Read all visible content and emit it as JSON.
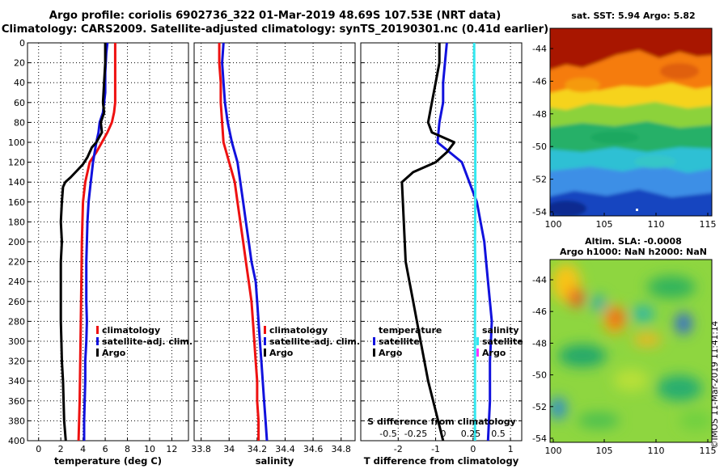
{
  "header": {
    "title_line1": "Argo profile: coriolis 6902736_322 01-Mar-2019 48.69S 107.53E (NRT data)",
    "title_line2": "Climatology: CARS2009. Satellite-adjusted climatology: synTS_20190301.nc (0.41d earlier)"
  },
  "sst_map": {
    "title": "sat. SST: 5.94 Argo: 5.82",
    "x_ticks": [
      "100",
      "105",
      "110",
      "115"
    ],
    "y_ticks": [
      "-44",
      "-46",
      "-48",
      "-50",
      "-52",
      "-54"
    ]
  },
  "sla_map": {
    "title_line1": "Altim. SLA: -0.0008",
    "title_line2": "Argo h1000: NaN h2000: NaN",
    "x_ticks": [
      "100",
      "105",
      "110",
      "115"
    ],
    "y_ticks": [
      "-44",
      "-46",
      "-48",
      "-50",
      "-52",
      "-54"
    ]
  },
  "stamp": "©IMOS 11-Mar-2019 11:41:14",
  "colors": {
    "climatology": "#ee1111",
    "satellite": "#1111dd",
    "argo": "#000000",
    "sat_salinity": "#33e8f0",
    "argo_salinity": "#ff33ff"
  },
  "chart_data": [
    {
      "type": "line",
      "title": "",
      "xlabel": "temperature (deg C)",
      "ylabel": "",
      "xlim": [
        -1,
        13.5
      ],
      "ylim": [
        400,
        0
      ],
      "grid": true,
      "x_tick_labels": [
        "0",
        "2",
        "4",
        "6",
        "8",
        "10",
        "12"
      ],
      "x_tick_values": [
        0,
        2,
        4,
        6,
        8,
        10,
        12
      ],
      "y_tick_labels": [
        "0",
        "20",
        "40",
        "60",
        "80",
        "100",
        "120",
        "140",
        "160",
        "180",
        "200",
        "220",
        "240",
        "260",
        "280",
        "300",
        "320",
        "340",
        "360",
        "380",
        "400"
      ],
      "legend_position": "lower-right",
      "legend": [
        "climatology",
        "satellite-adj. clim.",
        "Argo"
      ],
      "series": [
        {
          "name": "climatology",
          "color": "#ee1111",
          "points": [
            [
              6.9,
              0
            ],
            [
              6.9,
              20
            ],
            [
              6.9,
              40
            ],
            [
              6.9,
              60
            ],
            [
              6.8,
              70
            ],
            [
              6.6,
              80
            ],
            [
              6.2,
              90
            ],
            [
              5.7,
              100
            ],
            [
              5.2,
              110
            ],
            [
              4.6,
              120
            ],
            [
              4.2,
              140
            ],
            [
              4.0,
              160
            ],
            [
              3.9,
              200
            ],
            [
              3.85,
              240
            ],
            [
              3.8,
              280
            ],
            [
              3.75,
              320
            ],
            [
              3.7,
              360
            ],
            [
              3.6,
              400
            ]
          ]
        },
        {
          "name": "satellite-adj. clim.",
          "color": "#1111dd",
          "points": [
            [
              6.2,
              0
            ],
            [
              6.1,
              10
            ],
            [
              6.0,
              30
            ],
            [
              6.0,
              50
            ],
            [
              5.8,
              70
            ],
            [
              5.5,
              80
            ],
            [
              5.4,
              90
            ],
            [
              5.2,
              100
            ],
            [
              4.9,
              120
            ],
            [
              4.7,
              140
            ],
            [
              4.5,
              160
            ],
            [
              4.4,
              180
            ],
            [
              4.35,
              200
            ],
            [
              4.3,
              220
            ],
            [
              4.3,
              240
            ],
            [
              4.3,
              260
            ],
            [
              4.35,
              280
            ],
            [
              4.3,
              300
            ],
            [
              4.2,
              320
            ],
            [
              4.2,
              340
            ],
            [
              4.15,
              360
            ],
            [
              4.1,
              380
            ],
            [
              4.1,
              400
            ]
          ]
        },
        {
          "name": "Argo",
          "color": "#000000",
          "points": [
            [
              6.0,
              0
            ],
            [
              6.0,
              20
            ],
            [
              5.9,
              40
            ],
            [
              5.8,
              60
            ],
            [
              5.9,
              70
            ],
            [
              5.6,
              80
            ],
            [
              5.7,
              90
            ],
            [
              5.2,
              100
            ],
            [
              4.8,
              105
            ],
            [
              4.4,
              115
            ],
            [
              4.0,
              122
            ],
            [
              3.5,
              128
            ],
            [
              2.9,
              135
            ],
            [
              2.4,
              140
            ],
            [
              2.2,
              145
            ],
            [
              2.1,
              160
            ],
            [
              2.0,
              180
            ],
            [
              2.1,
              200
            ],
            [
              2.0,
              220
            ],
            [
              2.0,
              240
            ],
            [
              2.0,
              260
            ],
            [
              2.0,
              280
            ],
            [
              2.05,
              300
            ],
            [
              2.1,
              320
            ],
            [
              2.2,
              340
            ],
            [
              2.25,
              360
            ],
            [
              2.3,
              380
            ],
            [
              2.45,
              400
            ]
          ]
        }
      ]
    },
    {
      "type": "line",
      "title": "",
      "xlabel": "salinity",
      "ylabel": "",
      "xlim": [
        33.75,
        34.9
      ],
      "ylim": [
        400,
        0
      ],
      "grid": true,
      "x_tick_labels": [
        "33.8",
        "34",
        "34.2",
        "34.4",
        "34.6",
        "34.8"
      ],
      "x_tick_values": [
        33.8,
        34.0,
        34.2,
        34.4,
        34.6,
        34.8
      ],
      "legend_position": "lower-right",
      "legend": [
        "climatology",
        "satellite-adj. clim.",
        "Argo"
      ],
      "series": [
        {
          "name": "climatology",
          "color": "#ee1111",
          "points": [
            [
              33.93,
              0
            ],
            [
              33.93,
              20
            ],
            [
              33.94,
              40
            ],
            [
              33.94,
              60
            ],
            [
              33.95,
              80
            ],
            [
              33.96,
              100
            ],
            [
              34.0,
              120
            ],
            [
              34.04,
              140
            ],
            [
              34.06,
              160
            ],
            [
              34.08,
              180
            ],
            [
              34.1,
              200
            ],
            [
              34.12,
              220
            ],
            [
              34.14,
              240
            ],
            [
              34.16,
              260
            ],
            [
              34.17,
              280
            ],
            [
              34.18,
              300
            ],
            [
              34.19,
              320
            ],
            [
              34.2,
              340
            ],
            [
              34.2,
              360
            ],
            [
              34.21,
              380
            ],
            [
              34.21,
              400
            ]
          ]
        },
        {
          "name": "satellite-adj. clim.",
          "color": "#1111dd",
          "points": [
            [
              33.96,
              0
            ],
            [
              33.95,
              20
            ],
            [
              33.96,
              40
            ],
            [
              33.97,
              60
            ],
            [
              33.99,
              80
            ],
            [
              34.02,
              100
            ],
            [
              34.06,
              120
            ],
            [
              34.08,
              140
            ],
            [
              34.1,
              160
            ],
            [
              34.12,
              180
            ],
            [
              34.14,
              200
            ],
            [
              34.16,
              220
            ],
            [
              34.19,
              240
            ],
            [
              34.2,
              260
            ],
            [
              34.21,
              280
            ],
            [
              34.22,
              300
            ],
            [
              34.23,
              320
            ],
            [
              34.24,
              340
            ],
            [
              34.25,
              360
            ],
            [
              34.26,
              380
            ],
            [
              34.27,
              400
            ]
          ]
        }
      ]
    },
    {
      "type": "line",
      "title": "",
      "xlabel": "T difference from climatology",
      "ylabel": "",
      "xlim": [
        -3.0,
        1.3
      ],
      "ylim": [
        400,
        0
      ],
      "grid": true,
      "x_tick_labels": [
        "-2",
        "-1",
        "0",
        "1"
      ],
      "x_tick_values": [
        -2,
        -1,
        0,
        1
      ],
      "top_label": "S difference from climatology",
      "s_tick_labels": [
        "-0.5",
        "-0.25",
        "0",
        "0.25",
        "0.5"
      ],
      "s_tick_values": [
        -0.5,
        -0.25,
        0,
        0.25,
        0.5
      ],
      "legend_position": "lower",
      "legend_temperature_title": "temperature",
      "legend_temperature": [
        "satellite",
        "Argo"
      ],
      "legend_salinity_title": "salinity",
      "legend_salinity": [
        "satellite",
        "Argo"
      ],
      "series": [
        {
          "name": "temperature satellite",
          "color": "#1111dd",
          "points": [
            [
              -0.7,
              0
            ],
            [
              -0.75,
              20
            ],
            [
              -0.8,
              40
            ],
            [
              -0.8,
              60
            ],
            [
              -0.9,
              80
            ],
            [
              -0.95,
              100
            ],
            [
              -0.3,
              120
            ],
            [
              -0.1,
              140
            ],
            [
              0.1,
              160
            ],
            [
              0.3,
              200
            ],
            [
              0.4,
              240
            ],
            [
              0.5,
              280
            ],
            [
              0.45,
              320
            ],
            [
              0.45,
              360
            ],
            [
              0.4,
              400
            ]
          ]
        },
        {
          "name": "temperature Argo",
          "color": "#000000",
          "points": [
            [
              -0.9,
              0
            ],
            [
              -0.9,
              20
            ],
            [
              -1.0,
              40
            ],
            [
              -1.1,
              60
            ],
            [
              -1.2,
              80
            ],
            [
              -1.1,
              90
            ],
            [
              -0.5,
              100
            ],
            [
              -0.7,
              110
            ],
            [
              -1.0,
              120
            ],
            [
              -1.6,
              130
            ],
            [
              -1.9,
              140
            ],
            [
              -1.85,
              180
            ],
            [
              -1.8,
              220
            ],
            [
              -1.6,
              260
            ],
            [
              -1.4,
              300
            ],
            [
              -1.2,
              340
            ],
            [
              -1.0,
              370
            ],
            [
              -0.8,
              400
            ]
          ]
        },
        {
          "name": "salinity satellite",
          "color": "#33e8f0",
          "points": [
            [
              0.03,
              0
            ],
            [
              0.03,
              40
            ],
            [
              0.06,
              80
            ],
            [
              0.06,
              120
            ],
            [
              0.06,
              160
            ],
            [
              0.05,
              200
            ],
            [
              0.06,
              240
            ],
            [
              0.05,
              280
            ],
            [
              0.05,
              320
            ],
            [
              0.05,
              360
            ],
            [
              0.05,
              400
            ]
          ]
        }
      ]
    }
  ]
}
